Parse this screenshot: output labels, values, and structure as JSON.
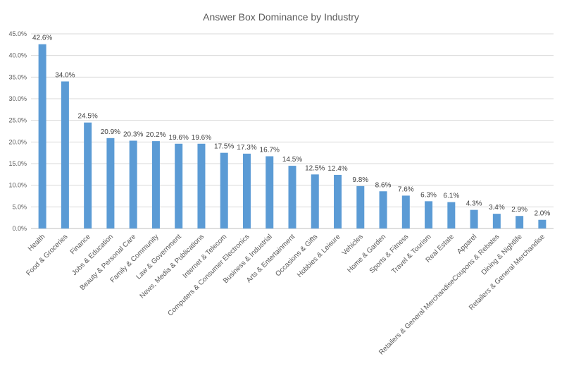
{
  "chart_data": {
    "type": "bar",
    "title": "Answer Box Dominance by Industry",
    "xlabel": "",
    "ylabel": "",
    "ylim": [
      0,
      45
    ],
    "y_ticks": [
      "0.0%",
      "5.0%",
      "10.0%",
      "15.0%",
      "20.0%",
      "25.0%",
      "30.0%",
      "35.0%",
      "40.0%",
      "45.0%"
    ],
    "grid": true,
    "legend": "none",
    "bar_color": "#5b9bd5",
    "categories": [
      "Health",
      "Food & Groceries",
      "Finance",
      "Jobs & Education",
      "Beauty & Personal Care",
      "Family & Community",
      "Law & Government",
      "News, Media & Publications",
      "Internet & Telecom",
      "Computers & Consumer Electronics",
      "Business & Industrial",
      "Arts & Entertainment",
      "Occasions & Gifts",
      "Hobbies & Leisure",
      "Vehicles",
      "Home & Garden",
      "Sports & Fitness",
      "Travel & Tourism",
      "Real Estate",
      "Apparel",
      "Retailers & General MerchandiseCoupons & Rebates",
      "Dining & Nightlife",
      "Retailers & General Merchandise"
    ],
    "values": [
      42.6,
      34.0,
      24.5,
      20.9,
      20.3,
      20.2,
      19.6,
      19.6,
      17.5,
      17.3,
      16.7,
      14.5,
      12.5,
      12.4,
      9.8,
      8.6,
      7.6,
      6.3,
      6.1,
      4.3,
      3.4,
      2.9,
      2.0
    ],
    "data_labels": [
      "42.6%",
      "34.0%",
      "24.5%",
      "20.9%",
      "20.3%",
      "20.2%",
      "19.6%",
      "19.6%",
      "17.5%",
      "17.3%",
      "16.7%",
      "14.5%",
      "12.5%",
      "12.4%",
      "9.8%",
      "8.6%",
      "7.6%",
      "6.3%",
      "6.1%",
      "4.3%",
      "3.4%",
      "2.9%",
      "2.0%"
    ]
  }
}
